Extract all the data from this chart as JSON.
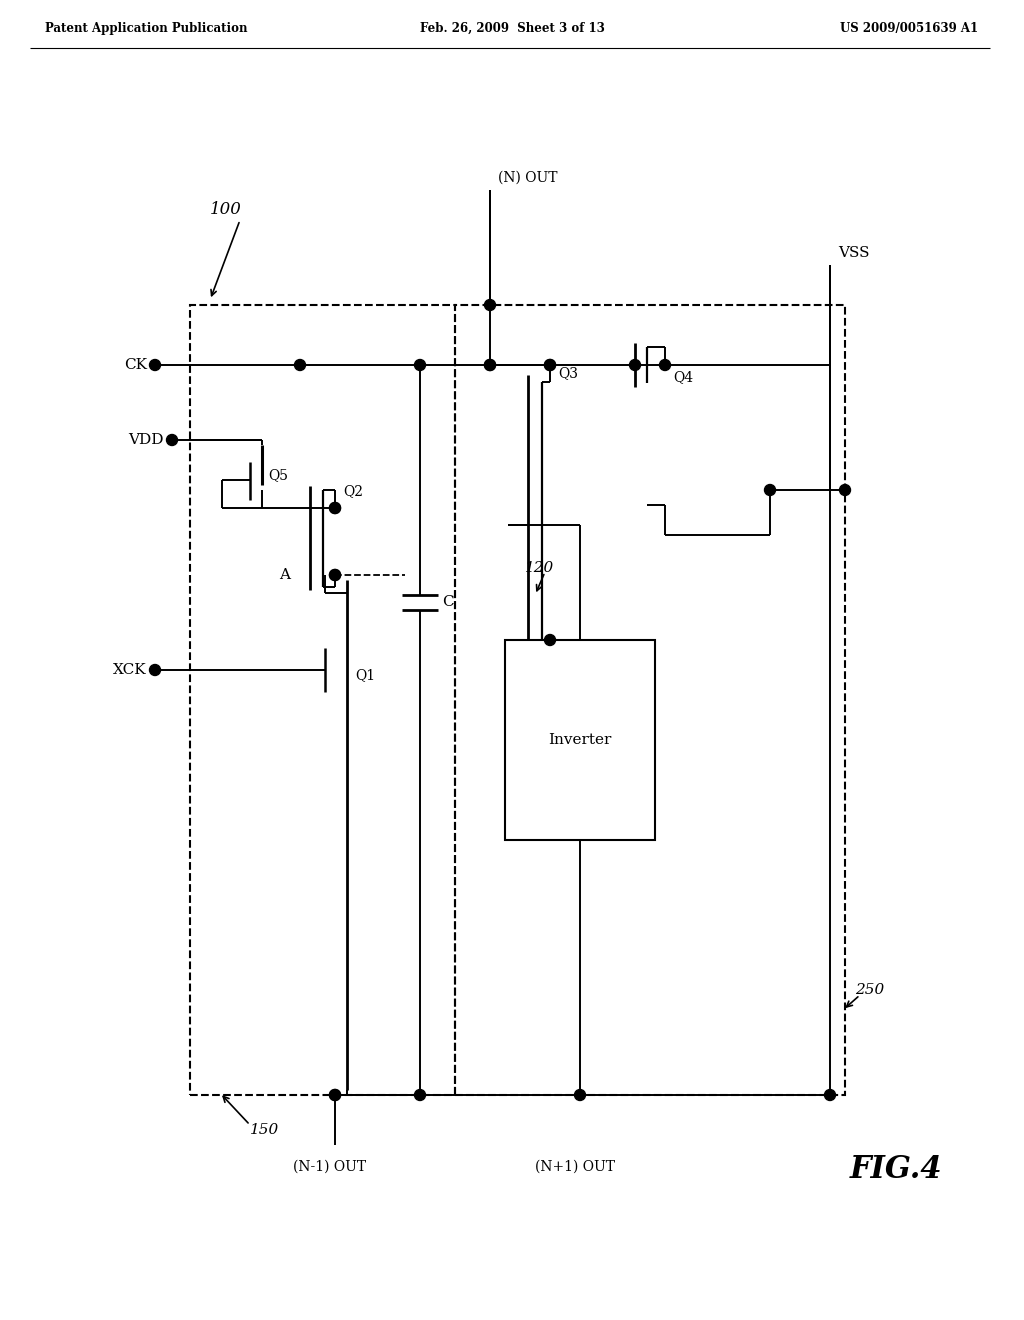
{
  "title_left": "Patent Application Publication",
  "title_center": "Feb. 26, 2009  Sheet 3 of 13",
  "title_right": "US 2009/0051639 A1",
  "fig_label": "FIG.4",
  "diagram_label": "100",
  "bg_color": "#ffffff",
  "line_color": "#000000",
  "dashed_color": "#555555",
  "fig_number": "FIG.4"
}
